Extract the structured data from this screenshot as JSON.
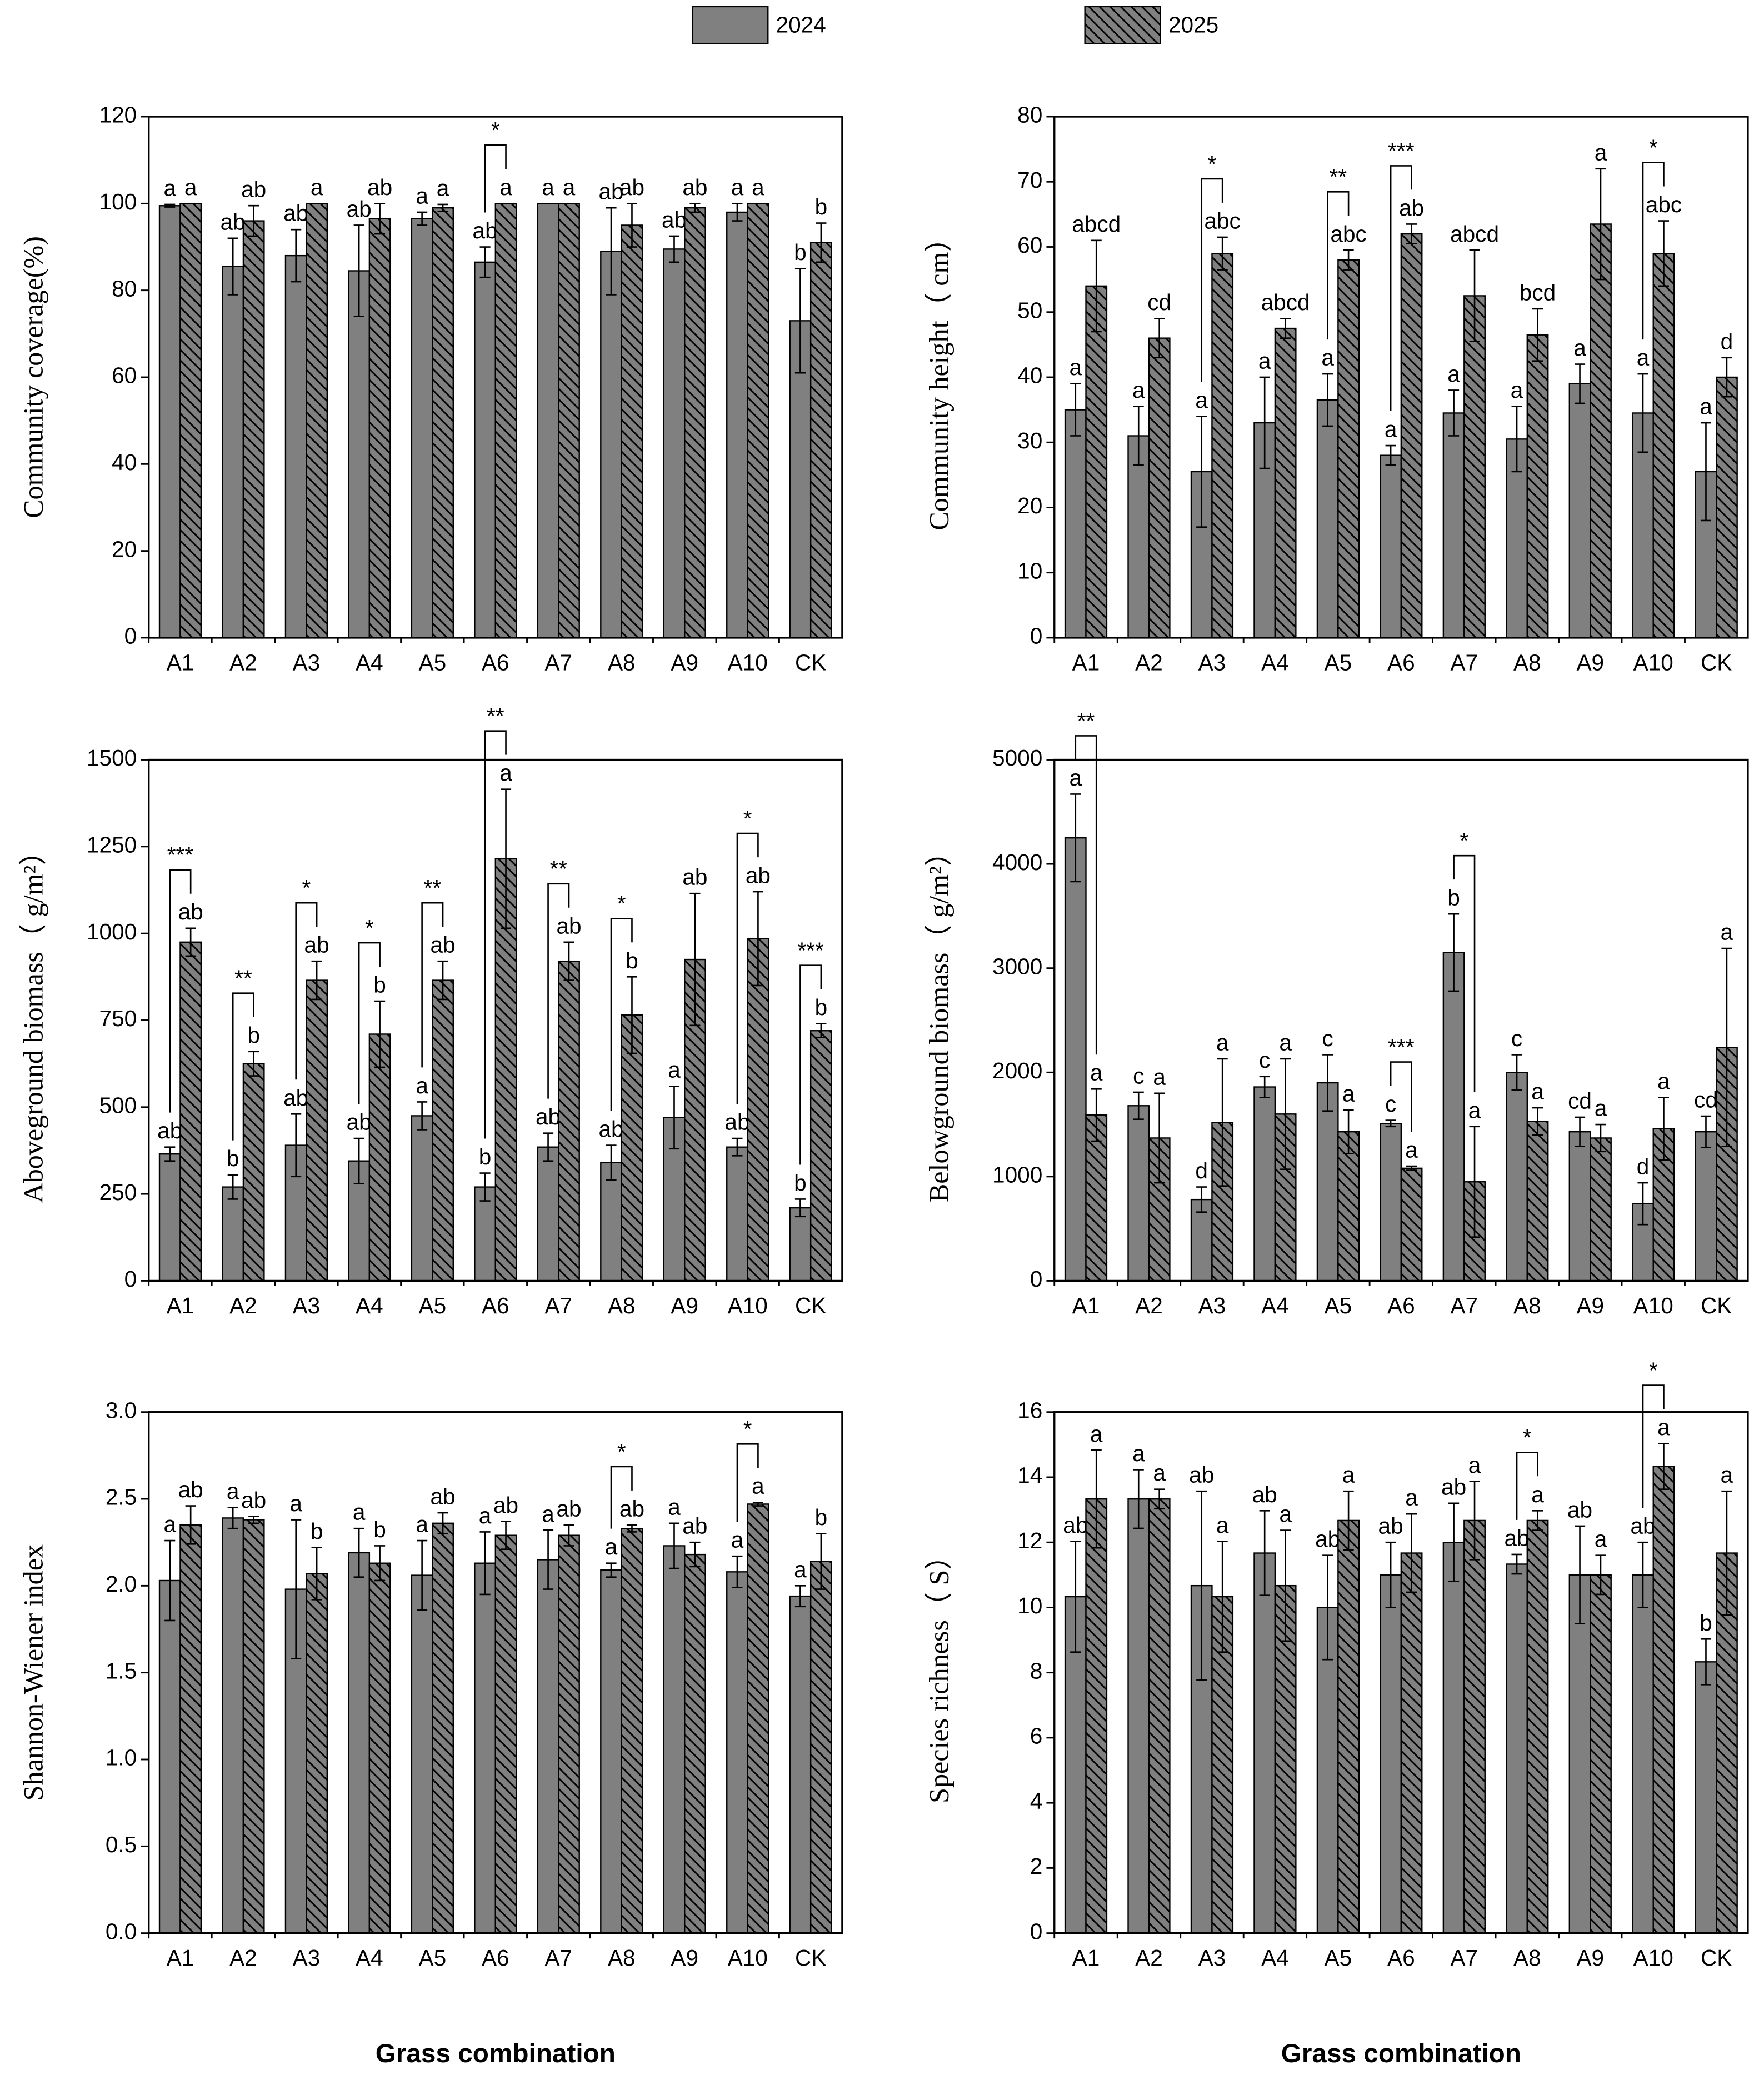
{
  "chart_data": [
    {
      "type": "bar",
      "ylabel": "Community coverage(%)",
      "categories": [
        "A1",
        "A2",
        "A3",
        "A4",
        "A5",
        "A6",
        "A7",
        "A8",
        "A9",
        "A10",
        "CK"
      ],
      "series": [
        {
          "name": "2024",
          "color": "#808080",
          "hatch": false,
          "values": [
            99.5,
            85.5,
            88,
            84.5,
            96.5,
            86.5,
            100,
            89,
            89.5,
            98,
            73
          ],
          "errors": [
            0.3,
            6.5,
            6,
            10.5,
            1.5,
            3.5,
            0,
            10,
            3,
            2,
            12
          ],
          "letters": [
            "a",
            "ab",
            "ab",
            "ab",
            "a",
            "ab",
            "a",
            "ab",
            "ab",
            "a",
            "b"
          ]
        },
        {
          "name": "2025",
          "color": "#808080",
          "hatch": true,
          "values": [
            100,
            96,
            100,
            96.5,
            99,
            100,
            100,
            95,
            99,
            100,
            91
          ],
          "errors": [
            0,
            3.5,
            0,
            3.5,
            0.8,
            0,
            0,
            5,
            1,
            0,
            4.5
          ],
          "letters": [
            "a",
            "ab",
            "a",
            "ab",
            "a",
            "a",
            "a",
            "ab",
            "ab",
            "a",
            "b"
          ]
        }
      ],
      "significance": [
        null,
        null,
        null,
        null,
        null,
        "*",
        null,
        null,
        null,
        null,
        null
      ],
      "ylim": [
        0,
        120
      ],
      "yticks": [
        0,
        20,
        40,
        60,
        80,
        100,
        120
      ]
    },
    {
      "type": "bar",
      "ylabel": "Community height（ cm）",
      "categories": [
        "A1",
        "A2",
        "A3",
        "A4",
        "A5",
        "A6",
        "A7",
        "A8",
        "A9",
        "A10",
        "CK"
      ],
      "series": [
        {
          "name": "2024",
          "color": "#808080",
          "hatch": false,
          "values": [
            35,
            31,
            25.5,
            33,
            36.5,
            28,
            34.5,
            30.5,
            39,
            34.5,
            25.5
          ],
          "errors": [
            4,
            4.5,
            8.5,
            7,
            4,
            1.5,
            3.5,
            5,
            3,
            6,
            7.5
          ],
          "letters": [
            "a",
            "a",
            "a",
            "a",
            "a",
            "a",
            "a",
            "a",
            "a",
            "a",
            "a"
          ]
        },
        {
          "name": "2025",
          "color": "#808080",
          "hatch": true,
          "values": [
            54,
            46,
            59,
            47.5,
            58,
            62,
            52.5,
            46.5,
            63.5,
            59,
            40
          ],
          "errors": [
            7,
            3,
            2.5,
            1.5,
            1.5,
            1.5,
            7,
            4,
            8.5,
            5,
            3
          ],
          "letters": [
            "abcd",
            "cd",
            "abc",
            "abcd",
            "abc",
            "ab",
            "abcd",
            "bcd",
            "a",
            "abc",
            "d"
          ]
        }
      ],
      "significance": [
        null,
        null,
        "*",
        null,
        "**",
        "***",
        null,
        null,
        null,
        "*",
        null
      ],
      "ylim": [
        0,
        80
      ],
      "yticks": [
        0,
        10,
        20,
        30,
        40,
        50,
        60,
        70,
        80
      ]
    },
    {
      "type": "bar",
      "ylabel": "Aboveground biomass（ g/m²）",
      "categories": [
        "A1",
        "A2",
        "A3",
        "A4",
        "A5",
        "A6",
        "A7",
        "A8",
        "A9",
        "A10",
        "CK"
      ],
      "series": [
        {
          "name": "2024",
          "color": "#808080",
          "hatch": false,
          "values": [
            365,
            270,
            390,
            345,
            475,
            270,
            385,
            340,
            470,
            385,
            210
          ],
          "errors": [
            20,
            35,
            90,
            65,
            40,
            40,
            40,
            50,
            90,
            25,
            25
          ],
          "letters": [
            "ab",
            "b",
            "ab",
            "ab",
            "a",
            "b",
            "ab",
            "ab",
            "a",
            "ab",
            "b"
          ]
        },
        {
          "name": "2025",
          "color": "#808080",
          "hatch": true,
          "values": [
            975,
            625,
            865,
            710,
            865,
            1215,
            920,
            765,
            925,
            985,
            720
          ],
          "errors": [
            40,
            35,
            55,
            95,
            55,
            200,
            55,
            110,
            190,
            135,
            20
          ],
          "letters": [
            "ab",
            "b",
            "ab",
            "b",
            "ab",
            "a",
            "ab",
            "b",
            "ab",
            "ab",
            "b"
          ]
        }
      ],
      "significance": [
        "***",
        "**",
        "*",
        "*",
        "**",
        "**",
        "**",
        "*",
        null,
        "*",
        "***"
      ],
      "ylim": [
        0,
        1500
      ],
      "yticks": [
        0,
        250,
        500,
        750,
        1000,
        1250,
        1500
      ]
    },
    {
      "type": "bar",
      "ylabel": "Belowground biomass（ g/m²）",
      "categories": [
        "A1",
        "A2",
        "A3",
        "A4",
        "A5",
        "A6",
        "A7",
        "A8",
        "A9",
        "A10",
        "CK"
      ],
      "series": [
        {
          "name": "2024",
          "color": "#808080",
          "hatch": false,
          "values": [
            4250,
            1680,
            780,
            1860,
            1900,
            1510,
            3150,
            2000,
            1430,
            740,
            1430
          ],
          "errors": [
            420,
            130,
            120,
            100,
            270,
            30,
            370,
            170,
            140,
            200,
            150
          ],
          "letters": [
            "a",
            "c",
            "d",
            "c",
            "c",
            "c",
            "b",
            "c",
            "cd",
            "d",
            "cd"
          ]
        },
        {
          "name": "2025",
          "color": "#808080",
          "hatch": true,
          "values": [
            1590,
            1370,
            1520,
            1600,
            1430,
            1080,
            950,
            1530,
            1370,
            1460,
            2240
          ],
          "errors": [
            250,
            430,
            610,
            530,
            210,
            20,
            530,
            130,
            130,
            300,
            950
          ],
          "letters": [
            "a",
            "a",
            "a",
            "a",
            "a",
            "a",
            "a",
            "a",
            "a",
            "a",
            "a"
          ]
        }
      ],
      "significance": [
        "**",
        null,
        null,
        null,
        null,
        "***",
        "*",
        null,
        null,
        null,
        null
      ],
      "ylim": [
        0,
        5000
      ],
      "yticks": [
        0,
        1000,
        2000,
        3000,
        4000,
        5000
      ]
    },
    {
      "type": "bar",
      "ylabel": "Shannon-Wiener index",
      "xlabel": "Grass combination",
      "categories": [
        "A1",
        "A2",
        "A3",
        "A4",
        "A5",
        "A6",
        "A7",
        "A8",
        "A9",
        "A10",
        "CK"
      ],
      "series": [
        {
          "name": "2024",
          "color": "#808080",
          "hatch": false,
          "values": [
            2.03,
            2.39,
            1.98,
            2.19,
            2.06,
            2.13,
            2.15,
            2.09,
            2.23,
            2.08,
            1.94
          ],
          "errors": [
            0.23,
            0.06,
            0.4,
            0.14,
            0.2,
            0.18,
            0.17,
            0.04,
            0.13,
            0.09,
            0.06
          ],
          "letters": [
            "a",
            "a",
            "a",
            "a",
            "a",
            "a",
            "a",
            "a",
            "a",
            "a",
            "a"
          ]
        },
        {
          "name": "2025",
          "color": "#808080",
          "hatch": true,
          "values": [
            2.35,
            2.38,
            2.07,
            2.13,
            2.36,
            2.29,
            2.29,
            2.33,
            2.18,
            2.47,
            2.14
          ],
          "errors": [
            0.11,
            0.02,
            0.15,
            0.1,
            0.06,
            0.08,
            0.06,
            0.02,
            0.07,
            0.01,
            0.16
          ],
          "letters": [
            "ab",
            "ab",
            "b",
            "b",
            "ab",
            "ab",
            "ab",
            "ab",
            "ab",
            "a",
            "b"
          ]
        }
      ],
      "significance": [
        null,
        null,
        null,
        null,
        null,
        null,
        null,
        "*",
        null,
        "*",
        null
      ],
      "ylim": [
        0,
        3
      ],
      "yticks": [
        {
          "value": 0,
          "label": "0.0"
        },
        0.5,
        {
          "value": 1,
          "label": "1.0"
        },
        1.5,
        {
          "value": 2,
          "label": "2.0"
        },
        2.5,
        {
          "value": 3,
          "label": "3.0"
        }
      ]
    },
    {
      "type": "bar",
      "ylabel": "Species richness（ S）",
      "xlabel": "Grass combination",
      "categories": [
        "A1",
        "A2",
        "A3",
        "A4",
        "A5",
        "A6",
        "A7",
        "A8",
        "A9",
        "A10",
        "CK"
      ],
      "series": [
        {
          "name": "2024",
          "color": "#808080",
          "hatch": false,
          "values": [
            10.33,
            13.33,
            10.67,
            11.67,
            10,
            11,
            12,
            11.33,
            11,
            11,
            8.33
          ],
          "errors": [
            1.7,
            0.9,
            2.9,
            1.3,
            1.6,
            1,
            1.2,
            0.3,
            1.5,
            1,
            0.7
          ],
          "letters": [
            "ab",
            "a",
            "ab",
            "ab",
            "ab",
            "ab",
            "ab",
            "ab",
            "ab",
            "ab",
            "b"
          ]
        },
        {
          "name": "2025",
          "color": "#808080",
          "hatch": true,
          "values": [
            13.33,
            13.33,
            10.33,
            10.67,
            12.67,
            11.67,
            12.67,
            12.67,
            11,
            14.33,
            11.67
          ],
          "errors": [
            1.5,
            0.3,
            1.7,
            1.7,
            0.9,
            1.2,
            1.2,
            0.3,
            0.6,
            0.7,
            1.9
          ],
          "letters": [
            "a",
            "a",
            "a",
            "a",
            "a",
            "a",
            "a",
            "a",
            "a",
            "a",
            "a"
          ]
        }
      ],
      "significance": [
        null,
        null,
        null,
        null,
        null,
        null,
        null,
        "*",
        null,
        "*",
        null
      ],
      "ylim": [
        0,
        16
      ],
      "yticks": [
        0,
        2,
        4,
        6,
        8,
        10,
        12,
        14,
        16
      ]
    }
  ]
}
